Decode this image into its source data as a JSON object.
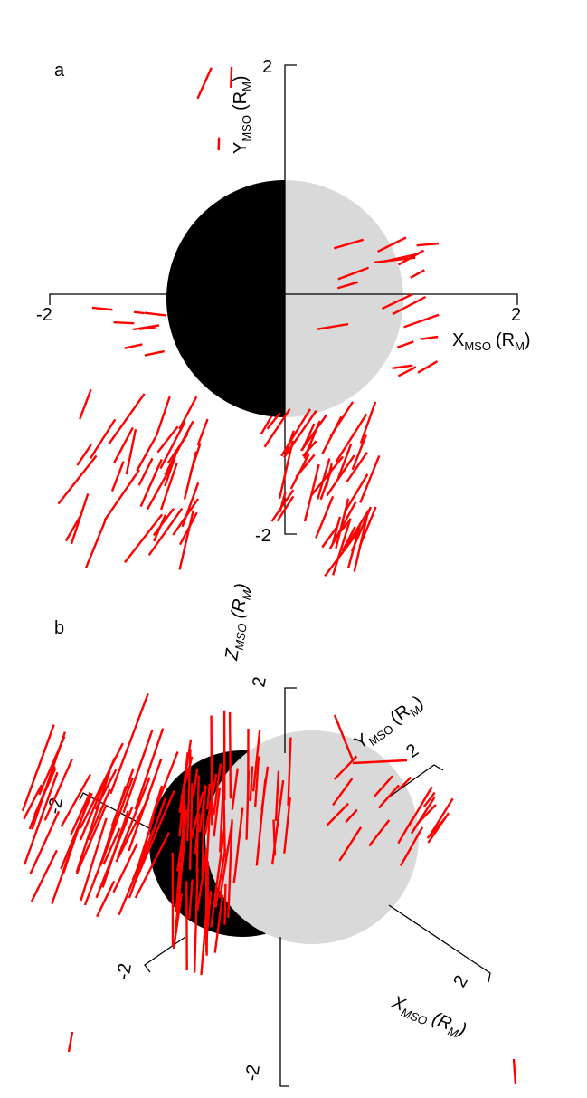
{
  "panels": [
    {
      "label": "a",
      "y_axis": {
        "name": "Y",
        "sub": "MSO",
        "unit": "(R",
        "unit_sub": "M",
        "close": ")"
      },
      "x_axis": {
        "name": "X",
        "sub": "MSO",
        "unit": "(R",
        "unit_sub": "M",
        "close": ")"
      },
      "ticks": [
        "2",
        "-2",
        "2",
        "-2"
      ]
    },
    {
      "label": "b",
      "z_axis": {
        "name": "Z",
        "sub": "MSO",
        "unit": "(R",
        "unit_sub": "M",
        "close": ")"
      },
      "y_axis": {
        "name": "Y",
        "sub": "MSO",
        "unit": "(R",
        "unit_sub": "M",
        "close": ")"
      },
      "x_axis": {
        "name": "X",
        "sub": "MSO",
        "unit": "(R",
        "unit_sub": "M",
        "close": ")"
      },
      "ticks": [
        "2",
        "2",
        "-2",
        "-2",
        "2",
        "-2"
      ]
    }
  ]
}
